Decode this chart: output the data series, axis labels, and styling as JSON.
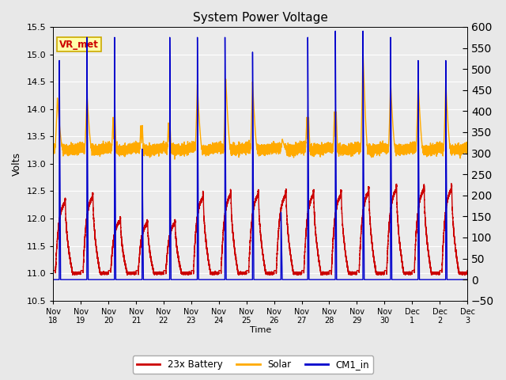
{
  "title": "System Power Voltage",
  "xlabel": "Time",
  "ylabel_left": "Volts",
  "ylim_left": [
    10.5,
    15.5
  ],
  "ylim_right": [
    -50,
    600
  ],
  "yticks_left": [
    10.5,
    11.0,
    11.5,
    12.0,
    12.5,
    13.0,
    13.5,
    14.0,
    14.5,
    15.0,
    15.5
  ],
  "yticks_right": [
    -50,
    0,
    50,
    100,
    150,
    200,
    250,
    300,
    350,
    400,
    450,
    500,
    550,
    600
  ],
  "xtick_labels": [
    "Nov 18",
    "Nov 19",
    "Nov 20",
    "Nov 21",
    "Nov 22",
    "Nov 23",
    "Nov 24",
    "Nov 25",
    "Nov 26",
    "Nov 27",
    "Nov 28",
    "Nov 29",
    "Nov 30",
    "Dec 1",
    "Dec 2",
    "Dec 3"
  ],
  "legend_labels": [
    "23x Battery",
    "Solar",
    "CM1_in"
  ],
  "line_colors": [
    "#cc0000",
    "#ffaa00",
    "#0000cc"
  ],
  "vr_met_label": "VR_met",
  "vr_met_text_color": "#cc0000",
  "vr_met_bg": "#ffffaa",
  "vr_met_border": "#ccaa00",
  "bg_color": "#e8e8e8",
  "plot_bg": "#ebebeb",
  "line_width": 1.0,
  "figsize": [
    6.4,
    4.8
  ],
  "dpi": 100
}
